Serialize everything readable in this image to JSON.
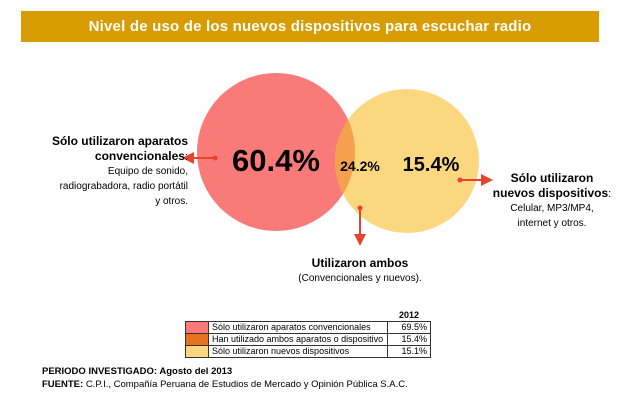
{
  "chart_data": {
    "type": "venn",
    "title": "Nivel de uso de los nuevos dispositivos para escuchar radio",
    "regions": [
      {
        "name": "Sólo utilizaron aparatos convencionales",
        "value": 60.4,
        "label": "60.4%",
        "color": "#f97a78"
      },
      {
        "name": "Utilizaron ambos",
        "value": 24.2,
        "label": "24.2%",
        "color": "#f5a04c"
      },
      {
        "name": "Sólo utilizaron nuevos dispositivos",
        "value": 15.4,
        "label": "15.4%",
        "color": "#fbd87f"
      }
    ],
    "annotations": {
      "left_title_1": "Sólo utilizaron aparatos",
      "left_title_2": "convencionales",
      "left_title_colon": ":",
      "left_desc_1": "Equipo de sonido,",
      "left_desc_2": "radiograbadora, radio portátil",
      "left_desc_3": "y otros.",
      "right_title_1": "Sólo utilizaron",
      "right_title_2": "nuevos dispositivos",
      "right_title_colon": ":",
      "right_desc_1": "Celular, MP3/MP4,",
      "right_desc_2": "internet y otros.",
      "bottom_title": "Utilizaron ambos",
      "bottom_desc": "(Convencionales y nuevos)."
    },
    "table": {
      "year": "2012",
      "rows": [
        {
          "label": "Sólo utilizaron aparatos convencionales",
          "value": "69.5%",
          "color": "#f97a78"
        },
        {
          "label": "Han utilizado ambos aparatos o dispositivo",
          "value": "15.4%",
          "color": "#e8731f"
        },
        {
          "label": "Sólo utilizaron nuevos dispositivos",
          "value": "15.1%",
          "color": "#fbd87f"
        }
      ]
    }
  },
  "footer": {
    "period": "PERIODO INVESTIGADO: Agosto del 2013",
    "source_label": "FUENTE:",
    "source_text": "C.P.I., Compañía Peruana de Estudios de Mercado y Opinión Pública S.A.C."
  },
  "colors": {
    "title_bg": "#d89c00",
    "arrow": "#e8432d"
  }
}
